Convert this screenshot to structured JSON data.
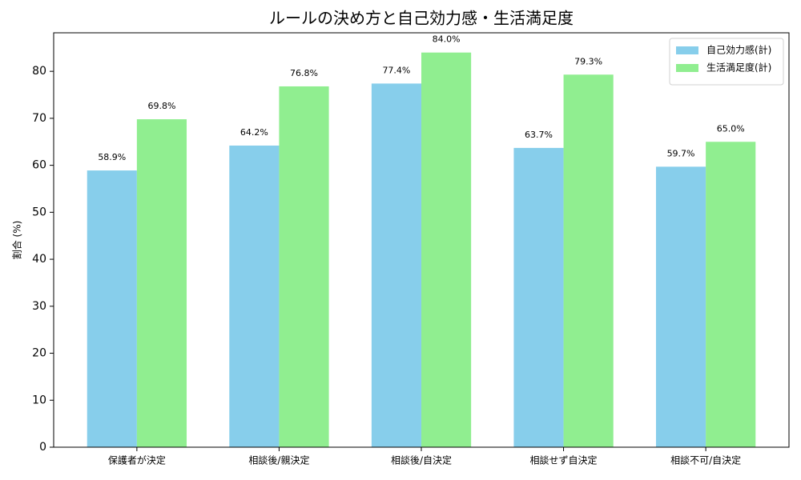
{
  "chart_data": {
    "type": "bar",
    "title": "ルールの決め方と自己効力感・生活満足度",
    "y_label": "割合 (%)",
    "categories": [
      "保護者が決定",
      "相談後/親決定",
      "相談後/自決定",
      "相談せず自決定",
      "相談不可/自決定"
    ],
    "series": [
      {
        "name": "自己効力感(計)",
        "color": "#87ceeb",
        "values": [
          58.9,
          64.2,
          77.4,
          63.7,
          59.7
        ],
        "value_labels": [
          "58.9%",
          "64.2%",
          "77.4%",
          "63.7%",
          "59.7%"
        ]
      },
      {
        "name": "生活満足度(計)",
        "color": "#90ee90",
        "values": [
          69.8,
          76.8,
          84.0,
          79.3,
          65.0
        ],
        "value_labels": [
          "69.8%",
          "76.8%",
          "84.0%",
          "79.3%",
          "65.0%"
        ]
      }
    ],
    "ylim": [
      0,
      88.2
    ],
    "yticks": [
      0,
      10,
      20,
      30,
      40,
      50,
      60,
      70,
      80
    ],
    "legend": "upper right",
    "grid": false
  }
}
